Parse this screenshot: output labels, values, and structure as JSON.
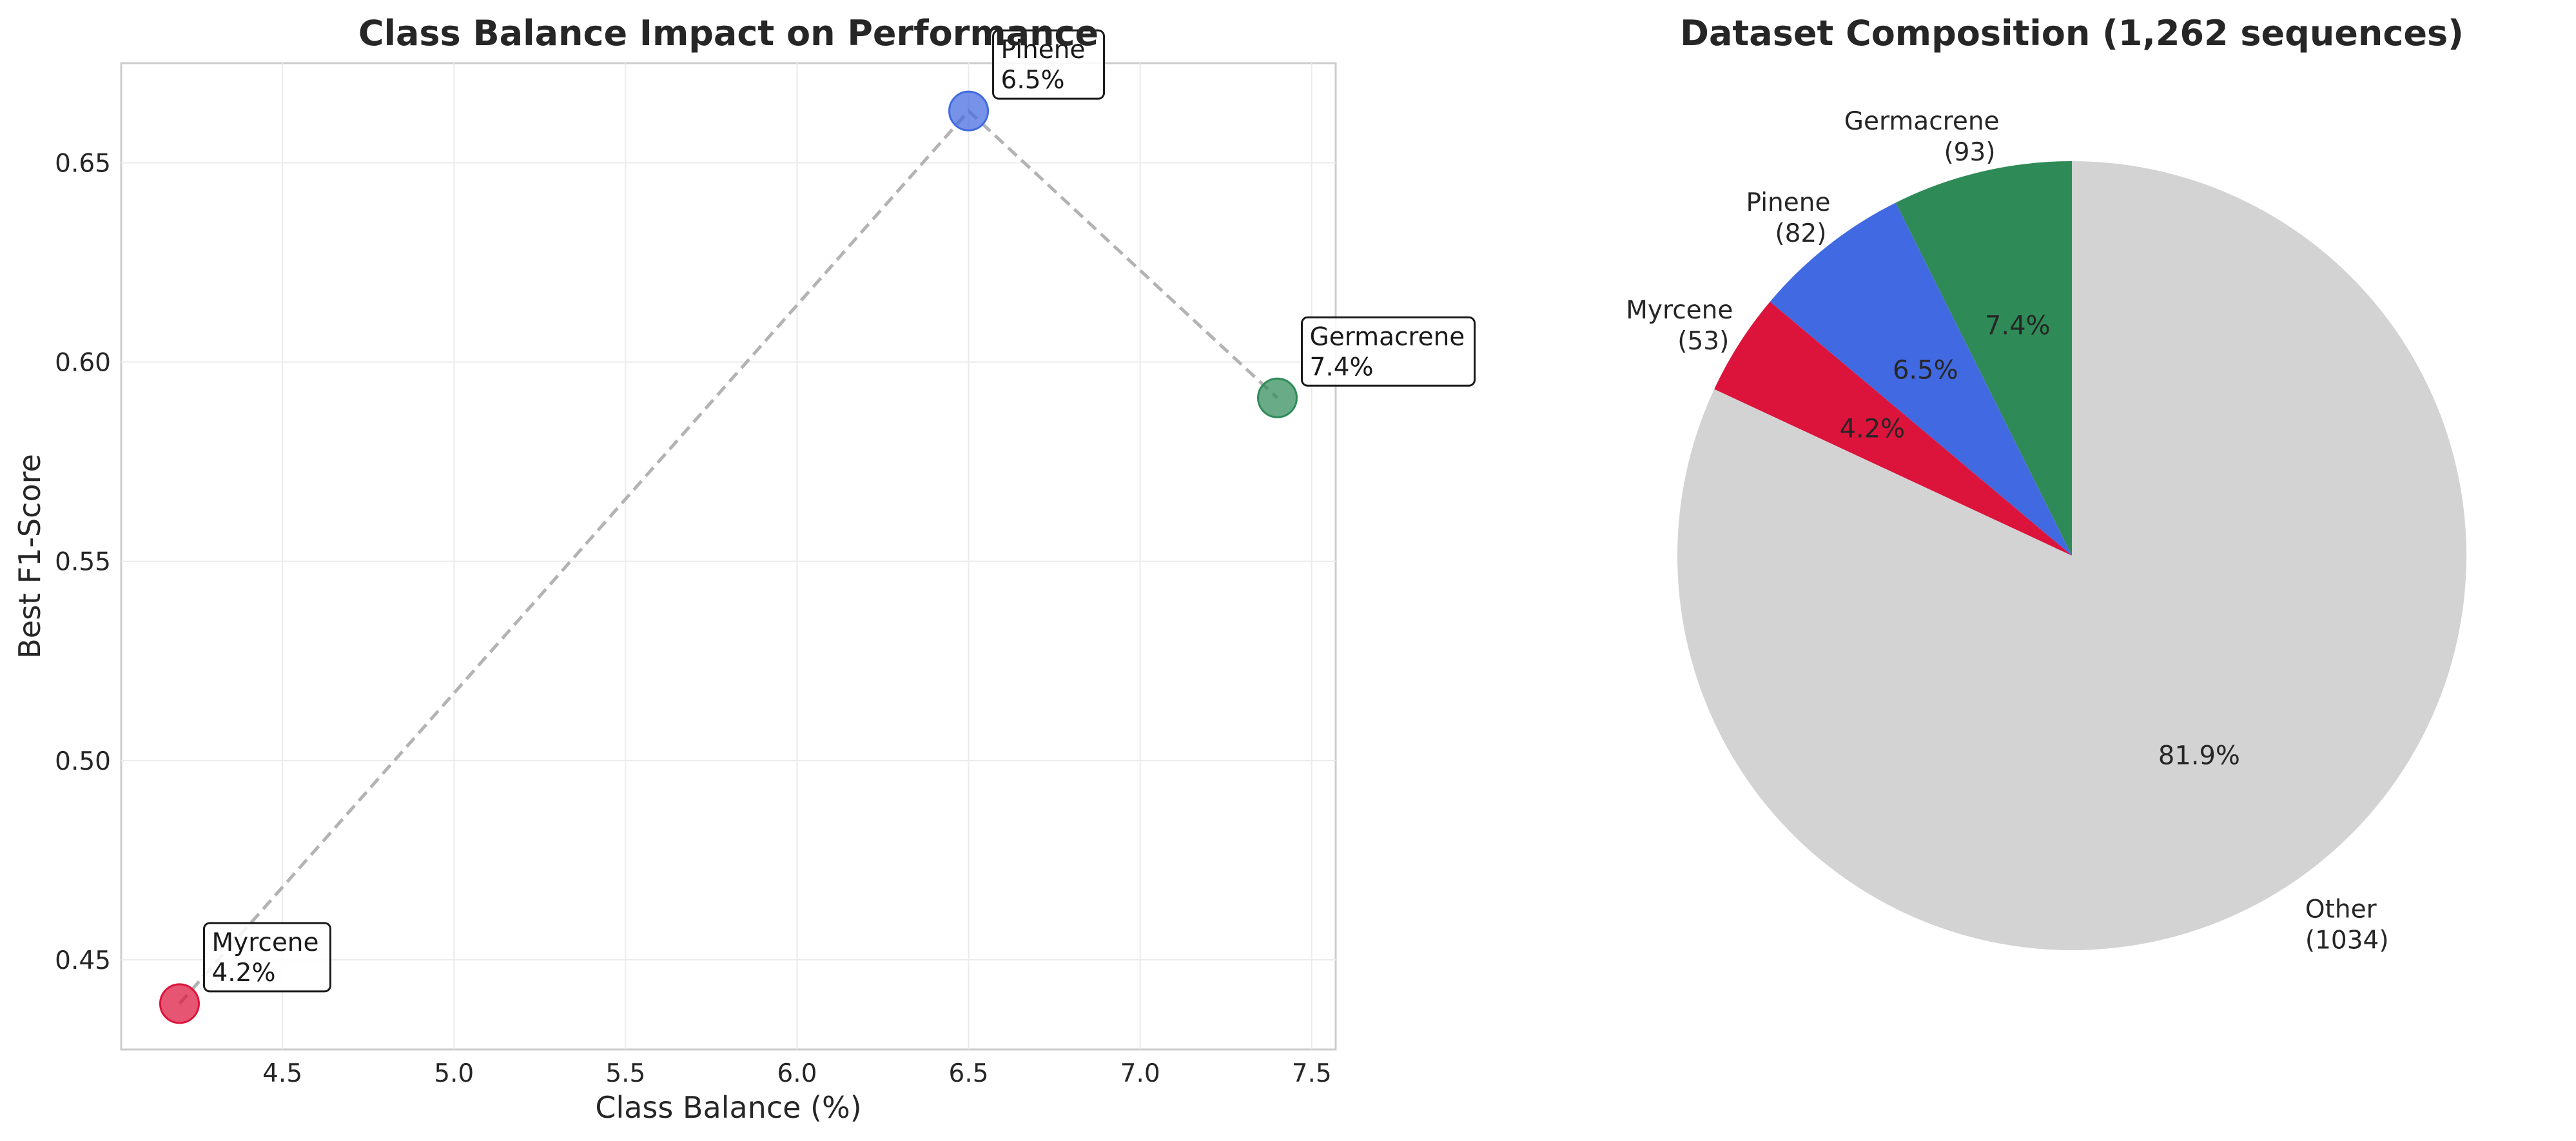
{
  "chart_data": [
    {
      "type": "scatter",
      "title": "Class Balance Impact on Performance",
      "xlabel": "Class Balance (%)",
      "ylabel": "Best F1-Score",
      "xlim": [
        4.03,
        7.57
      ],
      "ylim": [
        0.4275,
        0.675
      ],
      "xticks": [
        4.5,
        5.0,
        5.5,
        6.0,
        6.5,
        7.0,
        7.5
      ],
      "xtick_labels": [
        "4.5",
        "5.0",
        "5.5",
        "6.0",
        "6.5",
        "7.0",
        "7.5"
      ],
      "yticks": [
        0.45,
        0.5,
        0.55,
        0.6,
        0.65
      ],
      "ytick_labels": [
        "0.45",
        "0.50",
        "0.55",
        "0.60",
        "0.65"
      ],
      "grid": true,
      "connecting_line": "dashed",
      "points": [
        {
          "name": "Myrcene",
          "x": 4.2,
          "y": 0.439,
          "label_line1": "Myrcene",
          "label_line2": "4.2%",
          "color": "#DC143C"
        },
        {
          "name": "Pinene",
          "x": 6.5,
          "y": 0.663,
          "label_line1": "Pinene",
          "label_line2": "6.5%",
          "color": "#4169E1"
        },
        {
          "name": "Germacrene",
          "x": 7.4,
          "y": 0.591,
          "label_line1": "Germacrene",
          "label_line2": "7.4%",
          "color": "#2E8B57"
        }
      ]
    },
    {
      "type": "pie",
      "title": "Dataset Composition (1,262 sequences)",
      "start_angle_deg": 90,
      "direction": "counterclockwise",
      "slices": [
        {
          "name": "Germacrene",
          "count_label": "(93)",
          "value": 93,
          "pct_label": "7.4%",
          "color": "#2E8B57"
        },
        {
          "name": "Pinene",
          "count_label": "(82)",
          "value": 82,
          "pct_label": "6.5%",
          "color": "#4169E1"
        },
        {
          "name": "Myrcene",
          "count_label": "(53)",
          "value": 53,
          "pct_label": "4.2%",
          "color": "#DC143C"
        },
        {
          "name": "Other",
          "count_label": "(1034)",
          "value": 1034,
          "pct_label": "81.9%",
          "color": "#D3D3D3"
        }
      ]
    }
  ]
}
